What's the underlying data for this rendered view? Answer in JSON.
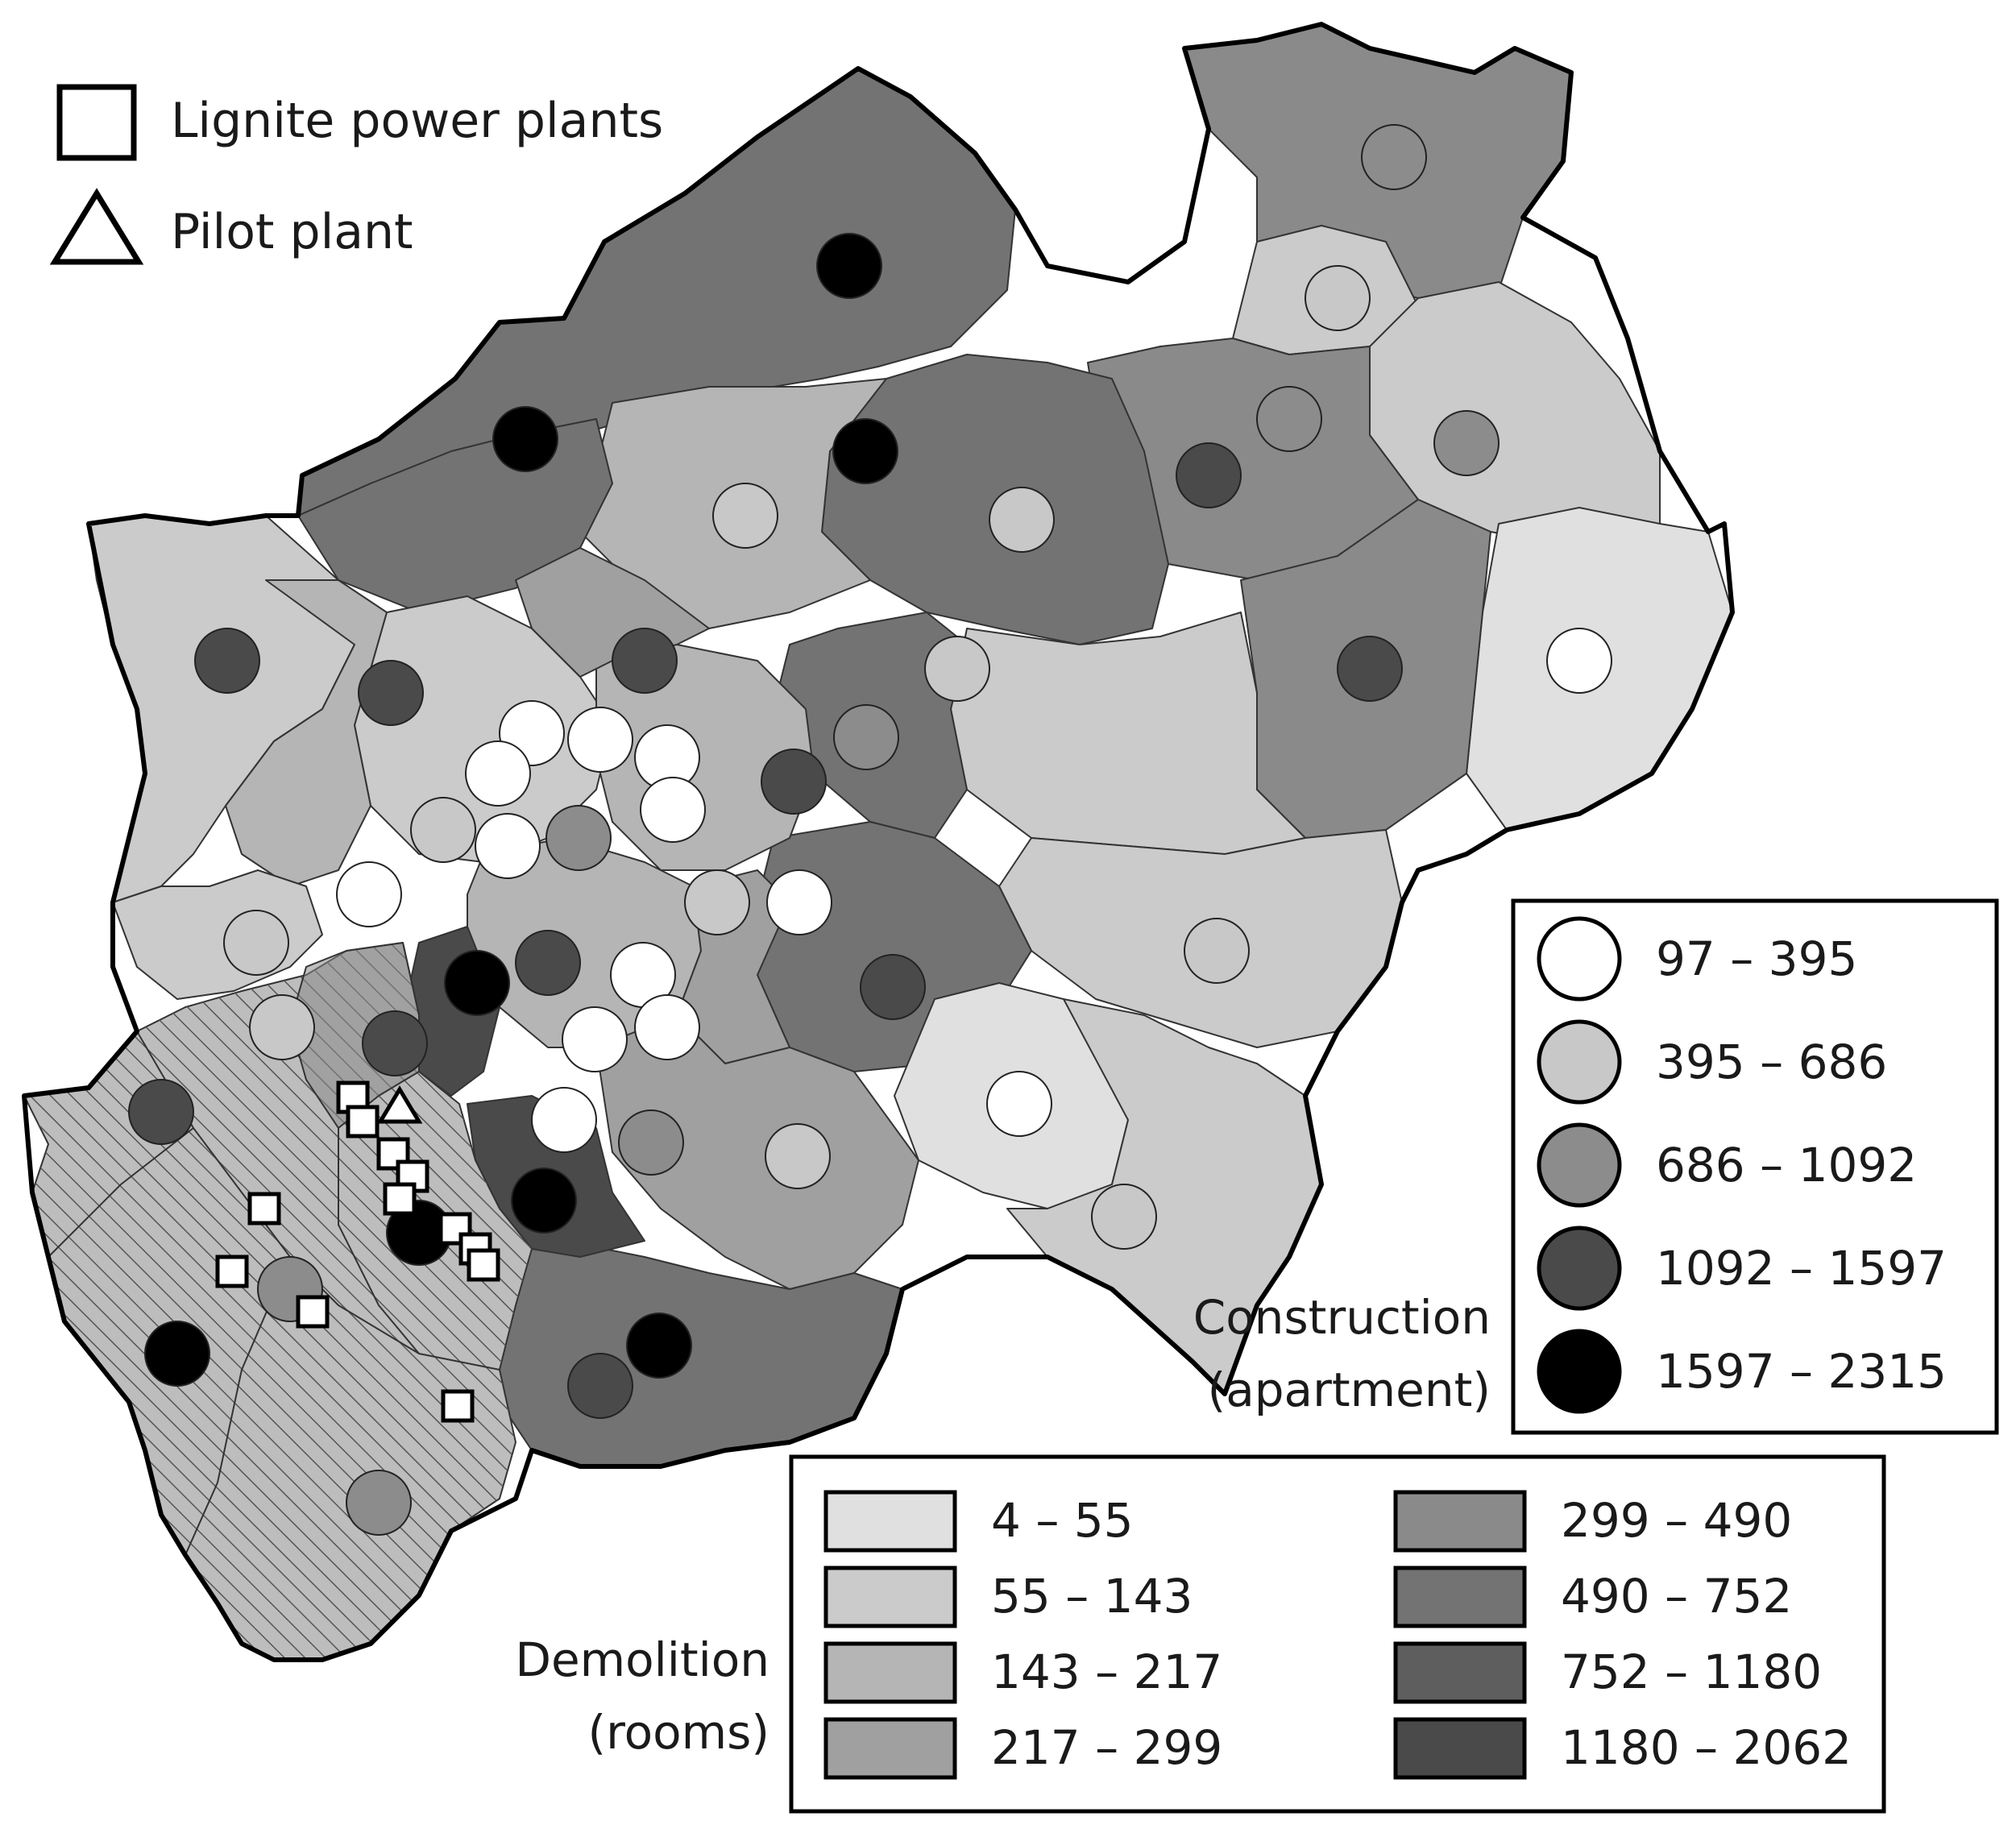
{
  "map": {
    "colors": {
      "background": "#ffffff",
      "outline": "#000000",
      "district_border": "#333333",
      "hatch": "#555555"
    },
    "point_legend": {
      "items": [
        {
          "symbol": "square",
          "label": "Lignite power plants"
        },
        {
          "symbol": "triangle",
          "label": "Pilot plant"
        }
      ]
    },
    "construction_legend": {
      "title_line1": "Construction",
      "title_line2": "(apartment)",
      "classes": [
        {
          "label": "97 – 395",
          "color": "#ffffff"
        },
        {
          "label": "395 – 686",
          "color": "#c8c8c8"
        },
        {
          "label": "686 – 1092",
          "color": "#8c8c8c"
        },
        {
          "label": "1092 – 1597",
          "color": "#4a4a4a"
        },
        {
          "label": "1597 – 2315",
          "color": "#000000"
        }
      ]
    },
    "demolition_legend": {
      "title_line1": "Demolition",
      "title_line2": "(rooms)",
      "classes": [
        {
          "label": "4 – 55",
          "color": "#e0e0e0"
        },
        {
          "label": "55 – 143",
          "color": "#cbcbcb"
        },
        {
          "label": "143 – 217",
          "color": "#b5b5b5"
        },
        {
          "label": "217 – 299",
          "color": "#a0a0a0"
        },
        {
          "label": "299 – 490",
          "color": "#8a8a8a"
        },
        {
          "label": "490 – 752",
          "color": "#737373"
        },
        {
          "label": "752 – 1180",
          "color": "#5e5e5e"
        },
        {
          "label": "1180 – 2062",
          "color": "#4a4a4a"
        }
      ]
    }
  }
}
